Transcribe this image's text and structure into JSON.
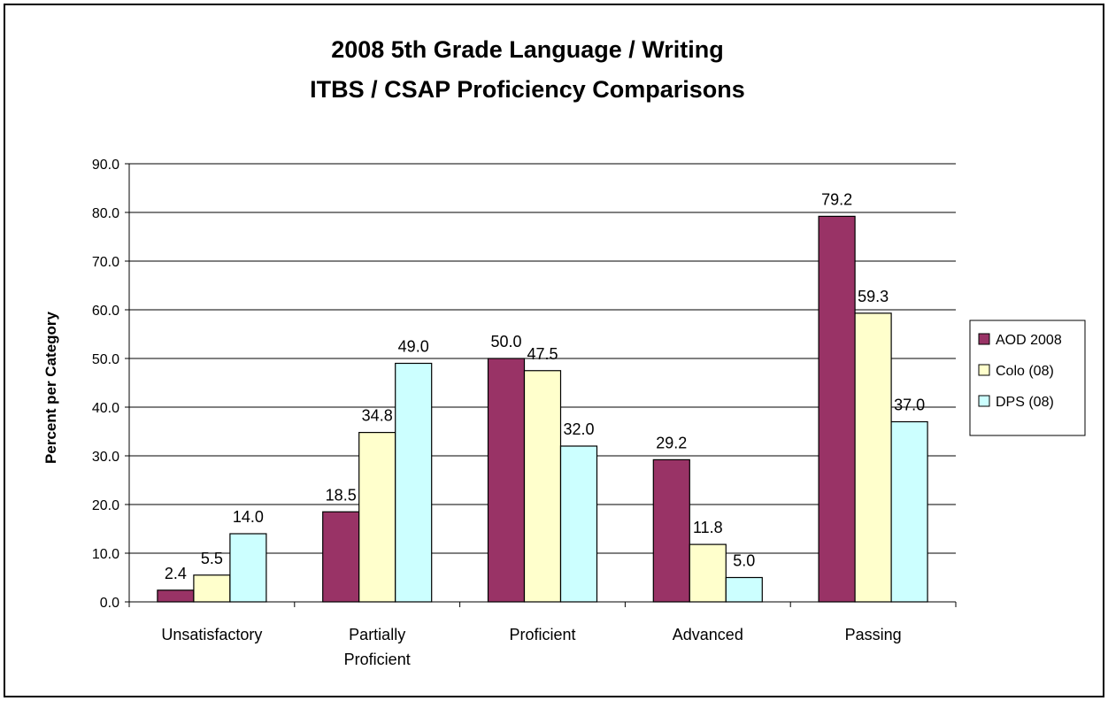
{
  "chart_data": {
    "type": "bar",
    "title_lines": [
      "2008 5th Grade Language / Writing",
      "ITBS / CSAP Proficiency Comparisons"
    ],
    "ylabel": "Percent per Category",
    "xlabel": "",
    "ylim": [
      0,
      90
    ],
    "ytick_step": 10,
    "ytick_labels": [
      "0.0",
      "10.0",
      "20.0",
      "30.0",
      "40.0",
      "50.0",
      "60.0",
      "70.0",
      "80.0",
      "90.0"
    ],
    "categories": [
      [
        "Unsatisfactory"
      ],
      [
        "Partially",
        "Proficient"
      ],
      [
        "Proficient"
      ],
      [
        "Advanced"
      ],
      [
        "Passing"
      ]
    ],
    "series": [
      {
        "name": "AOD 2008",
        "color": "#993366",
        "values": [
          2.4,
          18.5,
          50.0,
          29.2,
          79.2
        ],
        "labels": [
          "2.4",
          "18.5",
          "50.0",
          "29.2",
          "79.2"
        ]
      },
      {
        "name": "Colo (08)",
        "color": "#FFFFCC",
        "values": [
          5.5,
          34.8,
          47.5,
          11.8,
          59.3
        ],
        "labels": [
          "5.5",
          "34.8",
          "47.5",
          "11.8",
          "59.3"
        ]
      },
      {
        "name": "DPS (08)",
        "color": "#CCFFFF",
        "values": [
          14.0,
          49.0,
          32.0,
          5.0,
          37.0
        ],
        "labels": [
          "14.0",
          "49.0",
          "32.0",
          "5.0",
          "37.0"
        ]
      }
    ],
    "grid": true,
    "legend_position": "right"
  }
}
